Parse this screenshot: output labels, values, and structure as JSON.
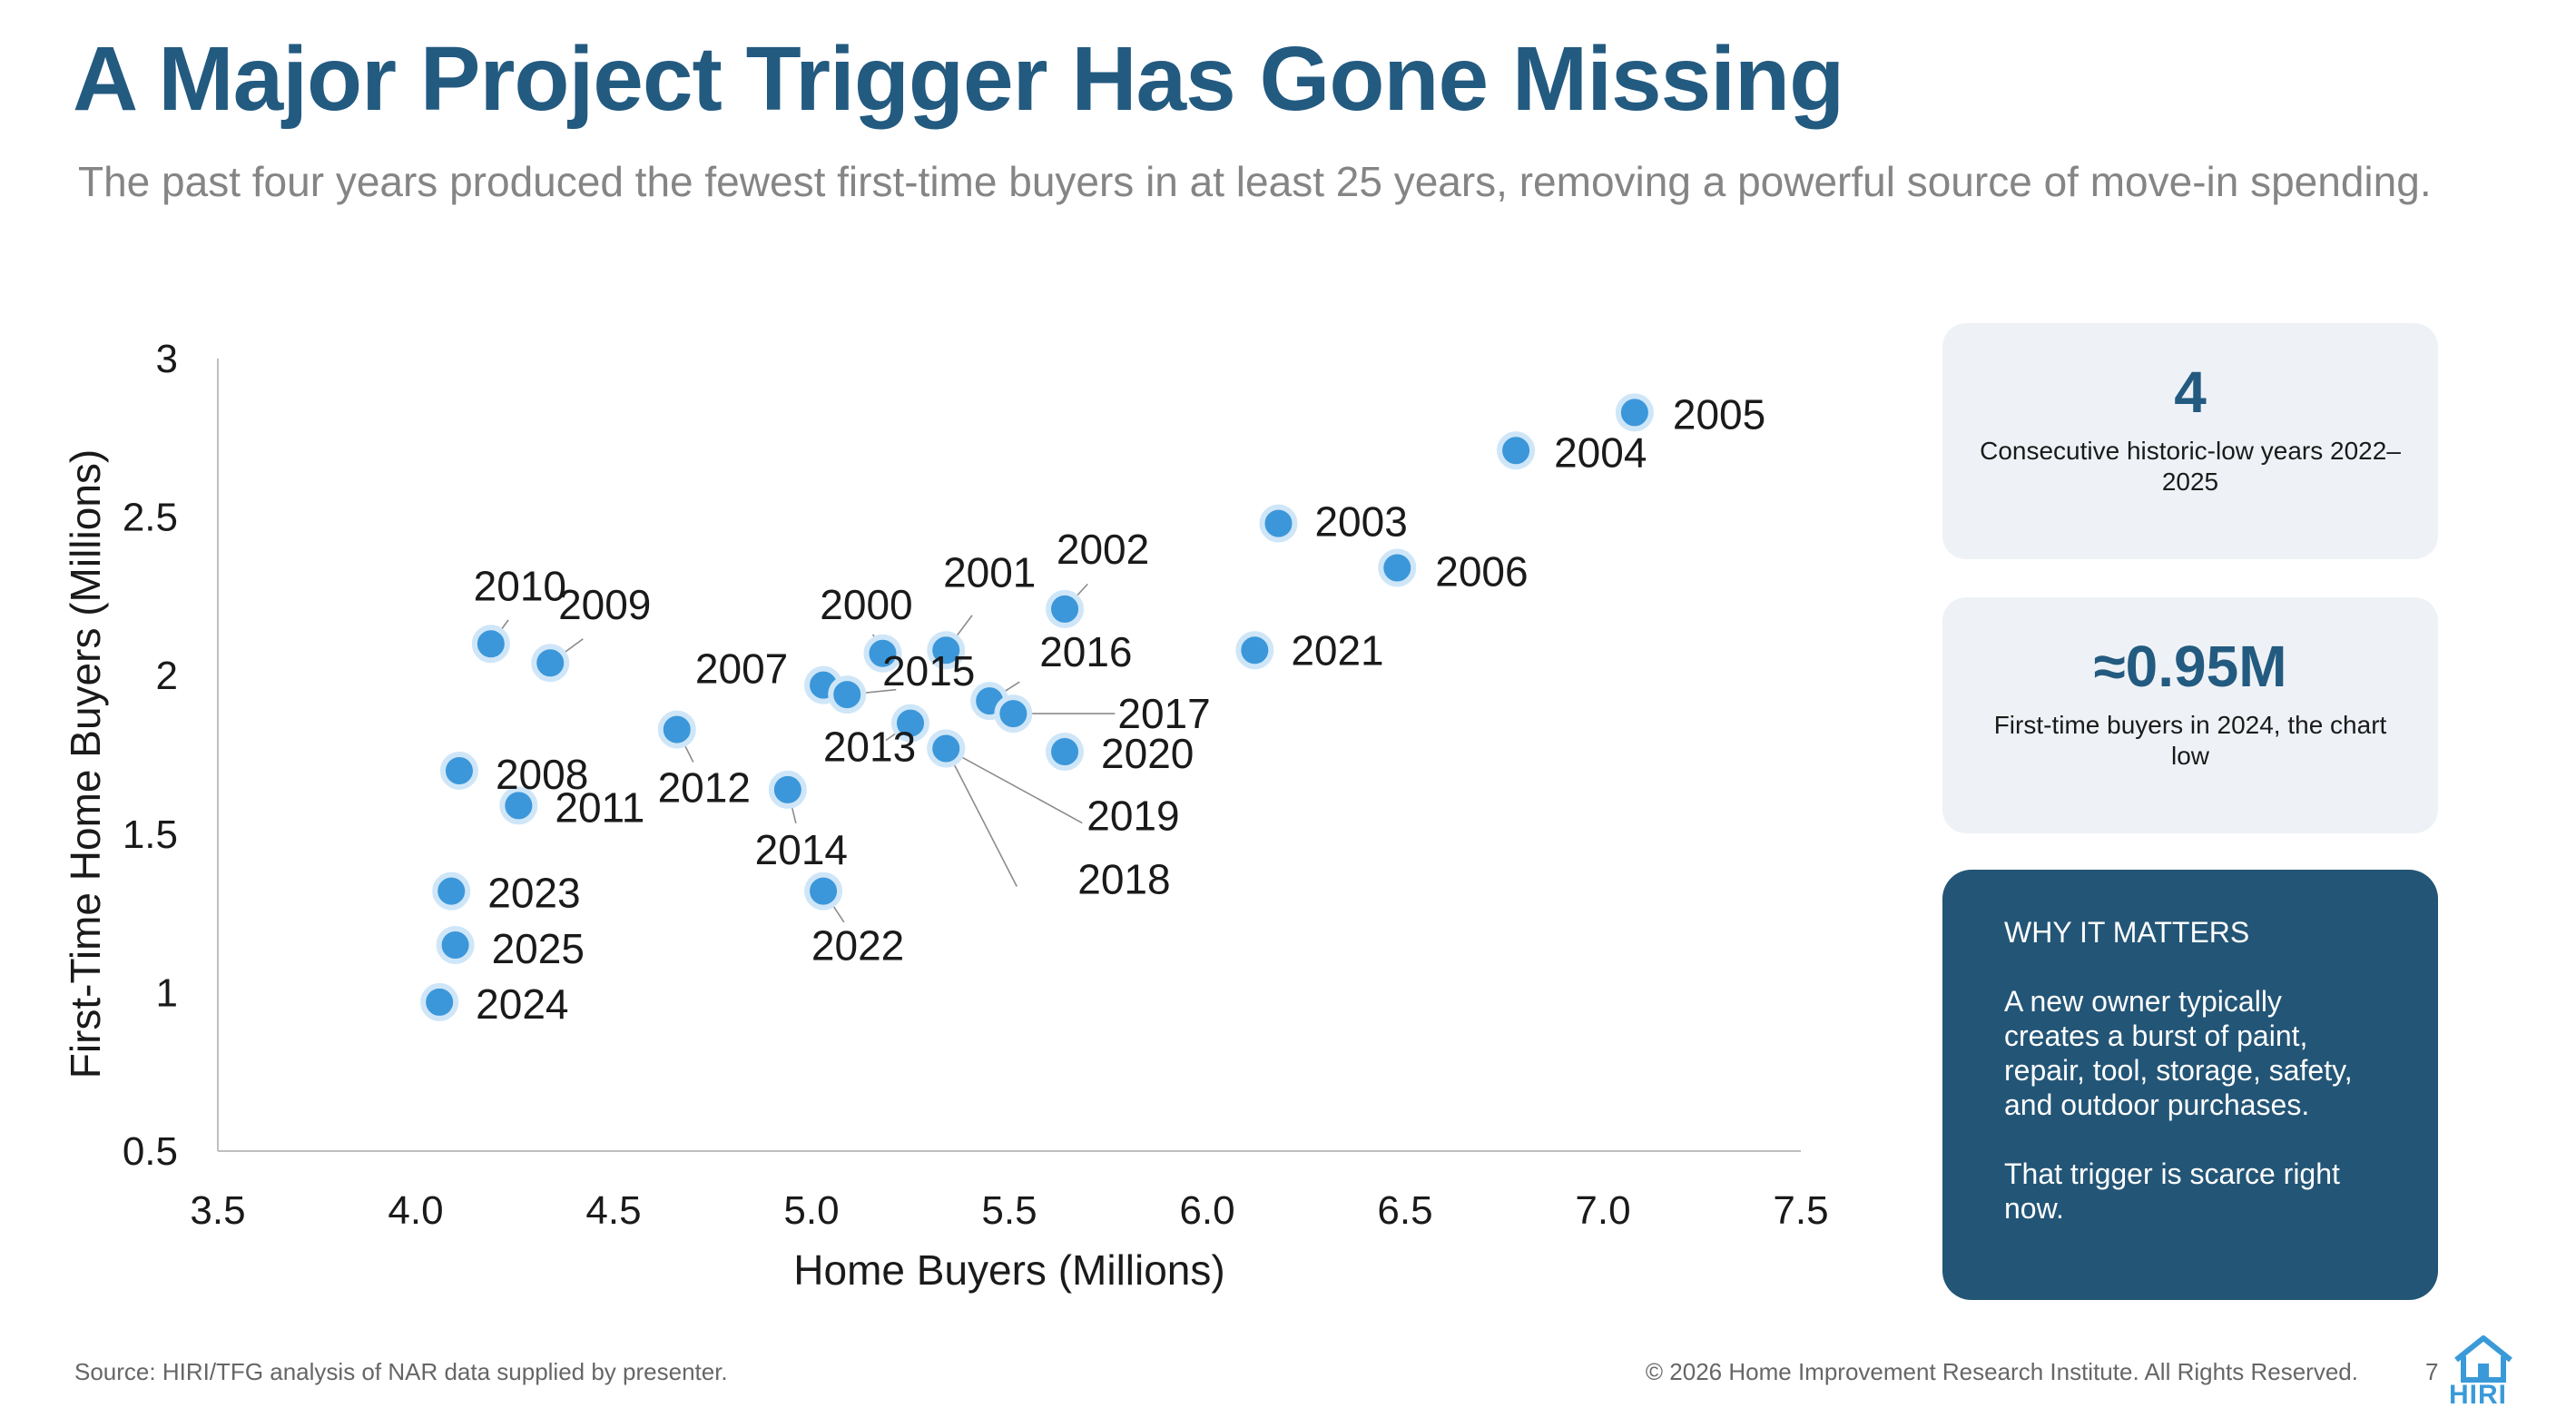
{
  "header": {
    "title": "A Major Project Trigger Has Gone Missing",
    "subtitle": "The past four years produced the fewest first-time buyers in at least 25 years, removing a powerful source of move-in spending."
  },
  "chart_data": {
    "type": "scatter",
    "xlabel": "Home Buyers (Millions)",
    "ylabel": "First-Time Home Buyers (Millions)",
    "xlim": [
      3.5,
      7.5
    ],
    "ylim": [
      0.5,
      3
    ],
    "xticks": [
      "3.5",
      "4.0",
      "4.5",
      "5.0",
      "5.5",
      "6.0",
      "6.5",
      "7.0",
      "7.5"
    ],
    "yticks": [
      "0.5",
      "1",
      "1.5",
      "2",
      "2.5",
      "3"
    ],
    "grid": false,
    "point_color": "#3b97d9",
    "points": [
      {
        "label": "2000",
        "x": 5.18,
        "y": 2.07
      },
      {
        "label": "2001",
        "x": 5.34,
        "y": 2.08
      },
      {
        "label": "2002",
        "x": 5.64,
        "y": 2.21
      },
      {
        "label": "2003",
        "x": 6.18,
        "y": 2.48
      },
      {
        "label": "2004",
        "x": 6.78,
        "y": 2.71
      },
      {
        "label": "2005",
        "x": 7.08,
        "y": 2.83
      },
      {
        "label": "2006",
        "x": 6.48,
        "y": 2.34
      },
      {
        "label": "2007",
        "x": 5.03,
        "y": 1.97
      },
      {
        "label": "2008",
        "x": 4.11,
        "y": 1.7
      },
      {
        "label": "2009",
        "x": 4.34,
        "y": 2.04
      },
      {
        "label": "2010",
        "x": 4.19,
        "y": 2.1
      },
      {
        "label": "2011",
        "x": 4.26,
        "y": 1.59
      },
      {
        "label": "2012",
        "x": 4.66,
        "y": 1.83
      },
      {
        "label": "2013",
        "x": 5.25,
        "y": 1.85
      },
      {
        "label": "2014",
        "x": 4.94,
        "y": 1.64
      },
      {
        "label": "2015",
        "x": 5.09,
        "y": 1.94
      },
      {
        "label": "2016",
        "x": 5.45,
        "y": 1.92
      },
      {
        "label": "2017",
        "x": 5.51,
        "y": 1.88
      },
      {
        "label": "2018",
        "x": 5.34,
        "y": 1.77
      },
      {
        "label": "2019",
        "x": 5.34,
        "y": 1.77
      },
      {
        "label": "2020",
        "x": 5.64,
        "y": 1.76
      },
      {
        "label": "2021",
        "x": 6.12,
        "y": 2.08
      },
      {
        "label": "2022",
        "x": 5.03,
        "y": 1.32
      },
      {
        "label": "2023",
        "x": 4.09,
        "y": 1.32
      },
      {
        "label": "2024",
        "x": 4.06,
        "y": 0.97
      },
      {
        "label": "2025",
        "x": 4.1,
        "y": 1.15
      }
    ]
  },
  "stats": [
    {
      "value": "4",
      "label": "Consecutive historic-low years 2022–2025"
    },
    {
      "value": "≈0.95M",
      "label": "First-time buyers in 2024, the chart low"
    }
  ],
  "why": {
    "heading": "WHY IT MATTERS",
    "body": "A new owner typically creates a burst of paint, repair, tool, storage, safety, and outdoor purchases.",
    "closing": "That trigger is scarce right now."
  },
  "footer": {
    "source": "Source: HIRI/TFG analysis of NAR data supplied by presenter.",
    "copyright": "© 2026 Home Improvement Research Institute. All Rights Reserved.",
    "page": "7",
    "logo_text": "HIRI"
  }
}
